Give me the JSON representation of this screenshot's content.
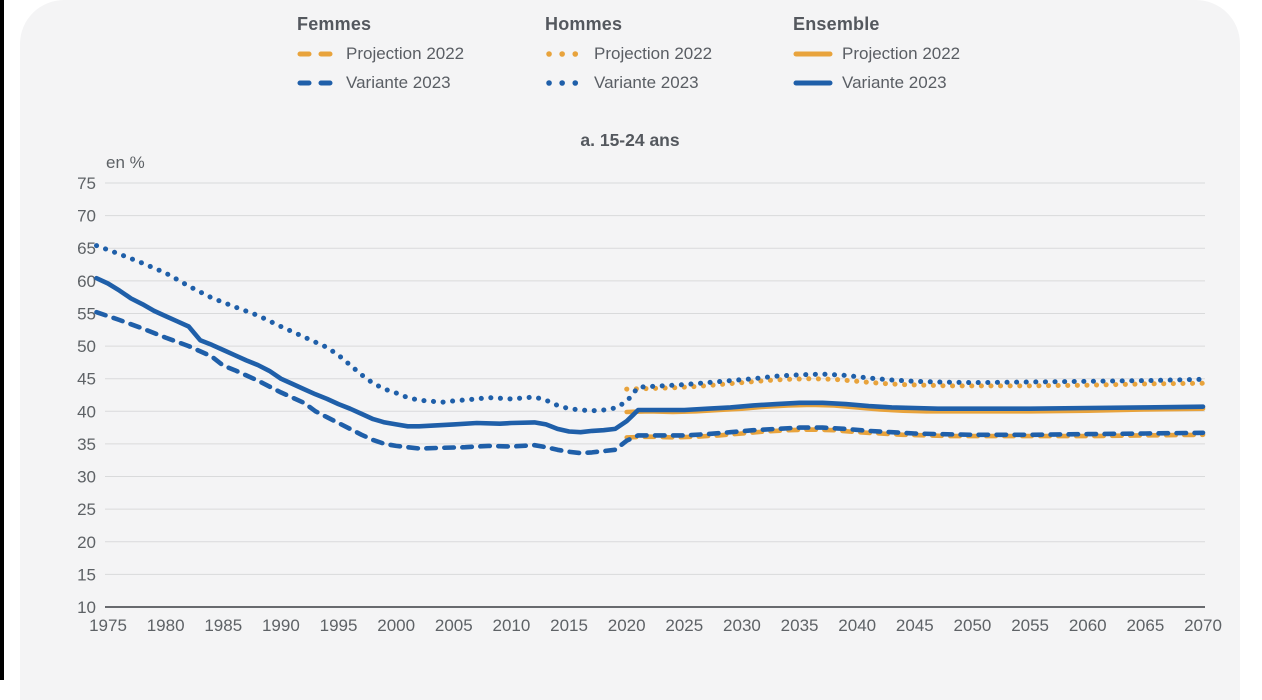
{
  "page": {
    "background": "#ffffff",
    "card_background": "#f4f4f5",
    "edge_bar_color": "#000000"
  },
  "legend": {
    "groups": [
      {
        "label": "Femmes",
        "items": [
          {
            "label": "Projection 2022",
            "color": "#E8A33C",
            "style": "dashed"
          },
          {
            "label": "Variante 2023",
            "color": "#1F5FA9",
            "style": "dashed"
          }
        ]
      },
      {
        "label": "Hommes",
        "items": [
          {
            "label": "Projection 2022",
            "color": "#E8A33C",
            "style": "dotted"
          },
          {
            "label": "Variante 2023",
            "color": "#1F5FA9",
            "style": "dotted"
          }
        ]
      },
      {
        "label": "Ensemble",
        "items": [
          {
            "label": "Projection 2022",
            "color": "#E8A33C",
            "style": "solid"
          },
          {
            "label": "Variante 2023",
            "color": "#1F5FA9",
            "style": "solid"
          }
        ]
      }
    ]
  },
  "chart_data": {
    "type": "line",
    "title": "a. 15-24 ans",
    "unit_label": "en %",
    "xlabel": "",
    "ylabel": "en %",
    "grid": true,
    "legend_position": "top",
    "x_axis": {
      "min": 1974,
      "max": 2070,
      "ticks": [
        1975,
        1980,
        1985,
        1990,
        1995,
        2000,
        2005,
        2010,
        2015,
        2020,
        2025,
        2030,
        2035,
        2040,
        2045,
        2050,
        2055,
        2060,
        2065,
        2070
      ]
    },
    "y_axis": {
      "min": 10,
      "max": 75,
      "step": 5,
      "ticks": [
        75,
        70,
        65,
        60,
        55,
        50,
        45,
        40,
        35,
        30,
        25,
        20,
        15,
        10
      ]
    },
    "colors": {
      "projection_2022": "#E8A33C",
      "variante_2023": "#1F5FA9",
      "gridline": "#d9dadb",
      "axis": "#55565a",
      "tick_text": "#5e6266"
    },
    "series": [
      {
        "name": "Femmes - Projection 2022",
        "group": "Femmes",
        "scenario": "Projection 2022",
        "color": "#E8A33C",
        "style": "dashed",
        "points": [
          [
            2020,
            36.0
          ],
          [
            2022,
            36.1
          ],
          [
            2024,
            36.0
          ],
          [
            2026,
            36.1
          ],
          [
            2028,
            36.3
          ],
          [
            2030,
            36.6
          ],
          [
            2032,
            36.9
          ],
          [
            2034,
            37.1
          ],
          [
            2036,
            37.2
          ],
          [
            2038,
            37.1
          ],
          [
            2040,
            36.8
          ],
          [
            2042,
            36.6
          ],
          [
            2044,
            36.4
          ],
          [
            2046,
            36.3
          ],
          [
            2048,
            36.2
          ],
          [
            2050,
            36.2
          ],
          [
            2055,
            36.2
          ],
          [
            2060,
            36.2
          ],
          [
            2065,
            36.3
          ],
          [
            2070,
            36.4
          ]
        ]
      },
      {
        "name": "Hommes - Projection 2022",
        "group": "Hommes",
        "scenario": "Projection 2022",
        "color": "#E8A33C",
        "style": "dotted",
        "points": [
          [
            2020,
            43.4
          ],
          [
            2022,
            43.5
          ],
          [
            2024,
            43.6
          ],
          [
            2026,
            43.8
          ],
          [
            2028,
            44.1
          ],
          [
            2030,
            44.4
          ],
          [
            2032,
            44.7
          ],
          [
            2034,
            44.9
          ],
          [
            2036,
            45.0
          ],
          [
            2038,
            44.9
          ],
          [
            2040,
            44.6
          ],
          [
            2042,
            44.3
          ],
          [
            2044,
            44.1
          ],
          [
            2046,
            44.0
          ],
          [
            2048,
            43.9
          ],
          [
            2050,
            43.9
          ],
          [
            2055,
            43.9
          ],
          [
            2060,
            44.0
          ],
          [
            2065,
            44.2
          ],
          [
            2070,
            44.3
          ]
        ]
      },
      {
        "name": "Ensemble - Projection 2022",
        "group": "Ensemble",
        "scenario": "Projection 2022",
        "color": "#E8A33C",
        "style": "solid",
        "points": [
          [
            2020,
            39.9
          ],
          [
            2022,
            40.0
          ],
          [
            2024,
            39.9
          ],
          [
            2026,
            40.0
          ],
          [
            2028,
            40.2
          ],
          [
            2030,
            40.4
          ],
          [
            2032,
            40.7
          ],
          [
            2034,
            40.9
          ],
          [
            2036,
            41.0
          ],
          [
            2038,
            40.9
          ],
          [
            2040,
            40.6
          ],
          [
            2042,
            40.3
          ],
          [
            2044,
            40.1
          ],
          [
            2046,
            40.0
          ],
          [
            2048,
            40.0
          ],
          [
            2050,
            40.0
          ],
          [
            2055,
            40.0
          ],
          [
            2060,
            40.1
          ],
          [
            2065,
            40.3
          ],
          [
            2070,
            40.4
          ]
        ]
      },
      {
        "name": "Femmes - Variante 2023",
        "group": "Femmes",
        "scenario": "Variante 2023",
        "color": "#1F5FA9",
        "style": "dashed",
        "points": [
          [
            1974,
            55.2
          ],
          [
            1976,
            54.0
          ],
          [
            1978,
            52.7
          ],
          [
            1980,
            51.3
          ],
          [
            1982,
            50.0
          ],
          [
            1984,
            48.4
          ],
          [
            1985,
            47.0
          ],
          [
            1986,
            46.3
          ],
          [
            1987,
            45.5
          ],
          [
            1988,
            44.7
          ],
          [
            1990,
            42.9
          ],
          [
            1992,
            41.3
          ],
          [
            1993,
            40.0
          ],
          [
            1994,
            39.1
          ],
          [
            1995,
            38.2
          ],
          [
            1996,
            37.3
          ],
          [
            1997,
            36.4
          ],
          [
            1998,
            35.6
          ],
          [
            1999,
            35.0
          ],
          [
            2000,
            34.7
          ],
          [
            2002,
            34.3
          ],
          [
            2004,
            34.4
          ],
          [
            2006,
            34.5
          ],
          [
            2008,
            34.7
          ],
          [
            2010,
            34.6
          ],
          [
            2012,
            34.8
          ],
          [
            2013,
            34.5
          ],
          [
            2014,
            34.1
          ],
          [
            2015,
            33.8
          ],
          [
            2016,
            33.6
          ],
          [
            2017,
            33.7
          ],
          [
            2018,
            33.9
          ],
          [
            2019,
            34.1
          ],
          [
            2020,
            35.5
          ],
          [
            2021,
            36.3
          ],
          [
            2023,
            36.3
          ],
          [
            2025,
            36.3
          ],
          [
            2027,
            36.5
          ],
          [
            2029,
            36.8
          ],
          [
            2031,
            37.1
          ],
          [
            2033,
            37.3
          ],
          [
            2035,
            37.5
          ],
          [
            2037,
            37.5
          ],
          [
            2039,
            37.3
          ],
          [
            2041,
            37.0
          ],
          [
            2043,
            36.8
          ],
          [
            2045,
            36.6
          ],
          [
            2047,
            36.5
          ],
          [
            2050,
            36.4
          ],
          [
            2055,
            36.4
          ],
          [
            2060,
            36.5
          ],
          [
            2065,
            36.6
          ],
          [
            2070,
            36.7
          ]
        ]
      },
      {
        "name": "Hommes - Variante 2023",
        "group": "Hommes",
        "scenario": "Variante 2023",
        "color": "#1F5FA9",
        "style": "dotted",
        "points": [
          [
            1974,
            65.4
          ],
          [
            1976,
            64.1
          ],
          [
            1978,
            62.7
          ],
          [
            1980,
            61.2
          ],
          [
            1981,
            60.2
          ],
          [
            1982,
            59.2
          ],
          [
            1984,
            57.4
          ],
          [
            1986,
            56.0
          ],
          [
            1988,
            54.7
          ],
          [
            1990,
            53.0
          ],
          [
            1992,
            51.4
          ],
          [
            1994,
            49.8
          ],
          [
            1995,
            48.6
          ],
          [
            1996,
            47.1
          ],
          [
            1997,
            45.6
          ],
          [
            1998,
            44.3
          ],
          [
            1999,
            43.4
          ],
          [
            2000,
            42.8
          ],
          [
            2001,
            42.1
          ],
          [
            2002,
            41.7
          ],
          [
            2004,
            41.4
          ],
          [
            2005,
            41.6
          ],
          [
            2007,
            41.9
          ],
          [
            2008,
            42.1
          ],
          [
            2010,
            41.9
          ],
          [
            2012,
            42.2
          ],
          [
            2013,
            41.7
          ],
          [
            2014,
            40.9
          ],
          [
            2015,
            40.4
          ],
          [
            2016,
            40.2
          ],
          [
            2017,
            40.1
          ],
          [
            2018,
            40.2
          ],
          [
            2019,
            40.5
          ],
          [
            2020,
            41.5
          ],
          [
            2021,
            43.7
          ],
          [
            2023,
            43.9
          ],
          [
            2025,
            44.1
          ],
          [
            2027,
            44.4
          ],
          [
            2029,
            44.7
          ],
          [
            2031,
            45.0
          ],
          [
            2033,
            45.4
          ],
          [
            2035,
            45.6
          ],
          [
            2037,
            45.7
          ],
          [
            2039,
            45.5
          ],
          [
            2041,
            45.1
          ],
          [
            2043,
            44.8
          ],
          [
            2045,
            44.6
          ],
          [
            2047,
            44.5
          ],
          [
            2050,
            44.4
          ],
          [
            2055,
            44.5
          ],
          [
            2060,
            44.6
          ],
          [
            2065,
            44.7
          ],
          [
            2070,
            44.9
          ]
        ]
      },
      {
        "name": "Ensemble - Variante 2023",
        "group": "Ensemble",
        "scenario": "Variante 2023",
        "color": "#1F5FA9",
        "style": "solid",
        "points": [
          [
            1974,
            60.4
          ],
          [
            1975,
            59.6
          ],
          [
            1976,
            58.5
          ],
          [
            1977,
            57.3
          ],
          [
            1978,
            56.4
          ],
          [
            1979,
            55.4
          ],
          [
            1980,
            54.6
          ],
          [
            1981,
            53.8
          ],
          [
            1982,
            53.0
          ],
          [
            1983,
            50.9
          ],
          [
            1984,
            50.2
          ],
          [
            1985,
            49.4
          ],
          [
            1986,
            48.6
          ],
          [
            1987,
            47.8
          ],
          [
            1988,
            47.1
          ],
          [
            1989,
            46.2
          ],
          [
            1990,
            45.0
          ],
          [
            1991,
            44.2
          ],
          [
            1992,
            43.4
          ],
          [
            1993,
            42.6
          ],
          [
            1994,
            41.9
          ],
          [
            1995,
            41.1
          ],
          [
            1996,
            40.4
          ],
          [
            1997,
            39.6
          ],
          [
            1998,
            38.8
          ],
          [
            1999,
            38.3
          ],
          [
            2000,
            38.0
          ],
          [
            2001,
            37.7
          ],
          [
            2002,
            37.7
          ],
          [
            2003,
            37.8
          ],
          [
            2005,
            38.0
          ],
          [
            2007,
            38.2
          ],
          [
            2009,
            38.1
          ],
          [
            2010,
            38.2
          ],
          [
            2012,
            38.3
          ],
          [
            2013,
            38.0
          ],
          [
            2014,
            37.3
          ],
          [
            2015,
            36.9
          ],
          [
            2016,
            36.8
          ],
          [
            2017,
            37.0
          ],
          [
            2018,
            37.1
          ],
          [
            2019,
            37.3
          ],
          [
            2020,
            38.5
          ],
          [
            2021,
            40.2
          ],
          [
            2023,
            40.2
          ],
          [
            2025,
            40.2
          ],
          [
            2027,
            40.4
          ],
          [
            2029,
            40.6
          ],
          [
            2031,
            40.9
          ],
          [
            2033,
            41.1
          ],
          [
            2035,
            41.3
          ],
          [
            2037,
            41.3
          ],
          [
            2039,
            41.1
          ],
          [
            2041,
            40.8
          ],
          [
            2043,
            40.6
          ],
          [
            2045,
            40.5
          ],
          [
            2047,
            40.4
          ],
          [
            2050,
            40.4
          ],
          [
            2055,
            40.4
          ],
          [
            2060,
            40.5
          ],
          [
            2065,
            40.6
          ],
          [
            2070,
            40.7
          ]
        ]
      }
    ]
  }
}
